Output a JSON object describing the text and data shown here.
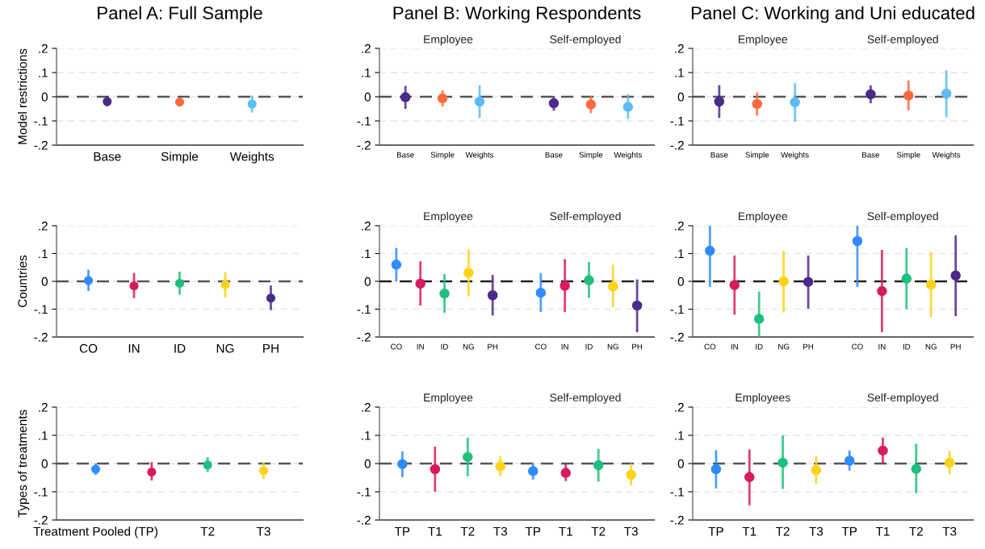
{
  "chart_data": [
    {
      "type": "scatter",
      "title": "Panel A: Full Sample",
      "ylabel": "Model restrictions",
      "categories": [
        "Base",
        "Simple",
        "Weights"
      ],
      "values": [
        -0.02,
        -0.022,
        -0.03
      ],
      "errors": [
        [
          -0.04,
          0.003
        ],
        [
          -0.04,
          -0.005
        ],
        [
          -0.065,
          0.005
        ]
      ],
      "colors": [
        "#4b2a8c",
        "#ff6a3d",
        "#5bbcf5"
      ],
      "ylim": [
        -0.2,
        0.2
      ],
      "yticks": [
        {
          "value": -0.2,
          "label": "-.2"
        },
        {
          "value": -0.1,
          "label": "-.1"
        },
        0,
        {
          "value": 0.1,
          "label": ".1"
        },
        {
          "value": 0.2,
          "label": ".2"
        }
      ],
      "grid": "y",
      "marker": "circle",
      "ref_lines": [
        {
          "axis": "y",
          "value": 0,
          "label": null,
          "color": "#555555",
          "line_style": "dashed"
        }
      ]
    },
    {
      "type": "scatter",
      "title": "Panel B: Working Respondents",
      "annotations": [
        "Employee",
        "Self-employed"
      ],
      "categories": [
        "Base",
        "Simple",
        "Weights",
        null,
        "Base",
        "Simple",
        "Weights"
      ],
      "values": [
        -0.002,
        -0.007,
        -0.02,
        null,
        -0.027,
        -0.032,
        -0.042
      ],
      "errors": [
        [
          -0.05,
          0.045
        ],
        [
          -0.04,
          0.027
        ],
        [
          -0.088,
          0.047
        ],
        null,
        [
          -0.058,
          0.003
        ],
        [
          -0.068,
          0.003
        ],
        [
          -0.092,
          0.01
        ]
      ],
      "colors": [
        "#4b2a8c",
        "#ff6a3d",
        "#5bbcf5",
        null,
        "#4b2a8c",
        "#ff6a3d",
        "#5bbcf5"
      ],
      "ylim": [
        -0.2,
        0.2
      ],
      "yticks": [
        {
          "value": -0.2,
          "label": "-.2"
        },
        {
          "value": -0.1,
          "label": "-.1"
        },
        0,
        {
          "value": 0.1,
          "label": ".1"
        },
        {
          "value": 0.2,
          "label": ".2"
        }
      ],
      "grid": "y",
      "marker": "circle",
      "ref_lines": [
        {
          "axis": "y",
          "value": 0,
          "label": null,
          "color": "#555555",
          "line_style": "dashed"
        }
      ]
    },
    {
      "type": "scatter",
      "title": "Panel C: Working and Uni educated",
      "annotations": [
        "Employee",
        "Self-employed"
      ],
      "categories": [
        "Base",
        "Simple",
        "Weights",
        null,
        "Base",
        "Simple",
        "Weights"
      ],
      "values": [
        -0.02,
        -0.03,
        -0.023,
        null,
        0.01,
        0.005,
        0.013
      ],
      "errors": [
        [
          -0.088,
          0.048
        ],
        [
          -0.078,
          0.018
        ],
        [
          -0.103,
          0.057
        ],
        null,
        [
          -0.027,
          0.047
        ],
        [
          -0.057,
          0.067
        ],
        [
          -0.085,
          0.11
        ]
      ],
      "colors": [
        "#4b2a8c",
        "#ff6a3d",
        "#5bbcf5",
        null,
        "#4b2a8c",
        "#ff6a3d",
        "#5bbcf5"
      ],
      "ylim": [
        -0.2,
        0.2
      ],
      "yticks": [
        {
          "value": -0.2,
          "label": "-.2"
        },
        {
          "value": -0.1,
          "label": "-.1"
        },
        0,
        {
          "value": 0.1,
          "label": ".1"
        },
        {
          "value": 0.2,
          "label": ".2"
        }
      ],
      "grid": "y",
      "marker": "circle",
      "ref_lines": [
        {
          "axis": "y",
          "value": 0,
          "label": null,
          "color": "#555555",
          "line_style": "dashed"
        }
      ]
    },
    {
      "type": "scatter",
      "ylabel": "Countries",
      "categories": [
        "CO",
        "IN",
        "ID",
        "NG",
        "PH"
      ],
      "values": [
        0.003,
        -0.016,
        -0.007,
        -0.012,
        -0.06
      ],
      "errors": [
        [
          -0.035,
          0.042
        ],
        [
          -0.06,
          0.03
        ],
        [
          -0.048,
          0.035
        ],
        [
          -0.058,
          0.033
        ],
        [
          -0.103,
          -0.015
        ]
      ],
      "colors": [
        "#2f8cff",
        "#d81b60",
        "#1fbf7f",
        "#ffd21a",
        "#4b2a8c"
      ],
      "ylim": [
        -0.2,
        0.2
      ],
      "yticks": [
        {
          "value": -0.2,
          "label": "-.2"
        },
        {
          "value": -0.1,
          "label": "-.1"
        },
        0,
        {
          "value": 0.1,
          "label": ".1"
        },
        {
          "value": 0.2,
          "label": ".2"
        }
      ],
      "grid": "y",
      "marker": "circle",
      "ref_lines": [
        {
          "axis": "y",
          "value": 0,
          "label": null,
          "color": "#555555",
          "line_style": "dashed"
        }
      ]
    },
    {
      "type": "scatter",
      "annotations": [
        "Employee",
        "Self-employed"
      ],
      "categories": [
        "CO",
        "IN",
        "ID",
        "NG",
        "PH",
        null,
        "CO",
        "IN",
        "ID",
        "NG",
        "PH"
      ],
      "values": [
        0.06,
        -0.008,
        -0.044,
        0.031,
        -0.05,
        null,
        -0.041,
        -0.016,
        0.004,
        -0.018,
        -0.087
      ],
      "errors": [
        [
          0.0,
          0.12
        ],
        [
          -0.087,
          0.072
        ],
        [
          -0.113,
          0.026
        ],
        [
          -0.054,
          0.115
        ],
        [
          -0.123,
          0.023
        ],
        null,
        [
          -0.11,
          0.03
        ],
        [
          -0.11,
          0.08
        ],
        [
          -0.06,
          0.07
        ],
        [
          -0.093,
          0.06
        ],
        [
          -0.183,
          0.007
        ]
      ],
      "colors": [
        "#2f8cff",
        "#d81b60",
        "#1fbf7f",
        "#ffd21a",
        "#4b2a8c",
        null,
        "#2f8cff",
        "#d81b60",
        "#1fbf7f",
        "#ffd21a",
        "#4b2a8c"
      ],
      "ylim": [
        -0.2,
        0.2
      ],
      "yticks": [
        {
          "value": -0.2,
          "label": "-.2"
        },
        {
          "value": -0.1,
          "label": "-.1"
        },
        0,
        {
          "value": 0.1,
          "label": ".1"
        },
        {
          "value": 0.2,
          "label": ".2"
        }
      ],
      "grid": "y",
      "marker": "circle",
      "ref_lines": [
        {
          "axis": "y",
          "value": 0,
          "label": null,
          "color": "#222222",
          "line_style": "dashed"
        }
      ]
    },
    {
      "type": "scatter",
      "annotations": [
        "Employee",
        "Self-employed"
      ],
      "categories": [
        "CO",
        "IN",
        "ID",
        "NG",
        "PH",
        null,
        "CO",
        "IN",
        "ID",
        "NG",
        "PH"
      ],
      "values": [
        0.11,
        -0.013,
        -0.135,
        0.0,
        -0.002,
        null,
        0.145,
        -0.035,
        0.01,
        -0.012,
        0.021
      ],
      "errors": [
        [
          -0.02,
          0.2
        ],
        [
          -0.12,
          0.093
        ],
        [
          -0.2,
          -0.037
        ],
        [
          -0.112,
          0.11
        ],
        [
          -0.098,
          0.093
        ],
        null,
        [
          -0.02,
          0.2
        ],
        [
          -0.183,
          0.113
        ],
        [
          -0.1,
          0.12
        ],
        [
          -0.128,
          0.105
        ],
        [
          -0.125,
          0.165
        ]
      ],
      "colors": [
        "#2f8cff",
        "#d81b60",
        "#1fbf7f",
        "#ffd21a",
        "#4b2a8c",
        null,
        "#2f8cff",
        "#d81b60",
        "#1fbf7f",
        "#ffd21a",
        "#4b2a8c"
      ],
      "ylim": [
        -0.2,
        0.2
      ],
      "yticks": [
        {
          "value": -0.2,
          "label": "-.2"
        },
        {
          "value": -0.1,
          "label": "-.1"
        },
        0,
        {
          "value": 0.1,
          "label": ".1"
        },
        {
          "value": 0.2,
          "label": ".2"
        }
      ],
      "grid": "y",
      "marker": "circle",
      "ref_lines": [
        {
          "axis": "y",
          "value": 0,
          "label": null,
          "color": "#222222",
          "line_style": "dashed"
        }
      ]
    },
    {
      "type": "scatter",
      "ylabel": "Types of treatments",
      "categories": [
        "Treatment Pooled (TP)",
        null,
        "T2",
        "T3"
      ],
      "values": [
        -0.02,
        -0.03,
        -0.005,
        -0.025
      ],
      "errors": [
        [
          -0.04,
          0.0
        ],
        [
          -0.06,
          0.005
        ],
        [
          -0.03,
          0.022
        ],
        [
          -0.055,
          0.005
        ]
      ],
      "colors": [
        "#2f8cff",
        "#d81b60",
        "#1fbf7f",
        "#ffd21a"
      ],
      "ylim": [
        -0.2,
        0.2
      ],
      "yticks": [
        {
          "value": -0.2,
          "label": "-.2"
        },
        {
          "value": -0.1,
          "label": "-.1"
        },
        0,
        {
          "value": 0.1,
          "label": ".1"
        },
        {
          "value": 0.2,
          "label": ".2"
        }
      ],
      "grid": "y",
      "marker": "circle",
      "ref_lines": [
        {
          "axis": "y",
          "value": 0,
          "label": null,
          "color": "#555555",
          "line_style": "dashed"
        }
      ]
    },
    {
      "type": "scatter",
      "annotations": [
        "Employee",
        "Self-employed"
      ],
      "categories": [
        "TP",
        "T1",
        "T2",
        "T3",
        "TP",
        "T1",
        "T2",
        "T3"
      ],
      "values": [
        -0.002,
        -0.02,
        0.023,
        -0.01,
        -0.027,
        -0.033,
        -0.006,
        -0.04
      ],
      "errors": [
        [
          -0.048,
          0.043
        ],
        [
          -0.1,
          0.06
        ],
        [
          -0.045,
          0.092
        ],
        [
          -0.045,
          0.026
        ],
        [
          -0.057,
          0.002
        ],
        [
          -0.062,
          -0.003
        ],
        [
          -0.064,
          0.052
        ],
        [
          -0.078,
          0.0
        ]
      ],
      "colors": [
        "#2f8cff",
        "#d81b60",
        "#1fbf7f",
        "#ffd21a",
        "#2f8cff",
        "#d81b60",
        "#1fbf7f",
        "#ffd21a"
      ],
      "ylim": [
        -0.2,
        0.2
      ],
      "yticks": [
        {
          "value": -0.2,
          "label": "-.2"
        },
        {
          "value": -0.1,
          "label": "-.1"
        },
        0,
        {
          "value": 0.1,
          "label": ".1"
        },
        {
          "value": 0.2,
          "label": ".2"
        }
      ],
      "grid": "y",
      "marker": "circle",
      "ref_lines": [
        {
          "axis": "y",
          "value": 0,
          "label": null,
          "color": "#555555",
          "line_style": "dashed"
        }
      ]
    },
    {
      "type": "scatter",
      "annotations": [
        "Employees",
        "Self-employed"
      ],
      "categories": [
        "TP",
        "T1",
        "T2",
        "T3",
        "TP",
        "T1",
        "T2",
        "T3"
      ],
      "values": [
        -0.02,
        -0.048,
        0.003,
        -0.023,
        0.01,
        0.046,
        -0.019,
        0.003
      ],
      "errors": [
        [
          -0.088,
          0.047
        ],
        [
          -0.148,
          0.05
        ],
        [
          -0.09,
          0.1
        ],
        [
          -0.072,
          0.027
        ],
        [
          -0.025,
          0.047
        ],
        [
          0.0,
          0.092
        ],
        [
          -0.105,
          0.07
        ],
        [
          -0.037,
          0.045
        ]
      ],
      "colors": [
        "#2f8cff",
        "#d81b60",
        "#1fbf7f",
        "#ffd21a",
        "#2f8cff",
        "#d81b60",
        "#1fbf7f",
        "#ffd21a"
      ],
      "ylim": [
        -0.2,
        0.2
      ],
      "yticks": [
        {
          "value": -0.2,
          "label": "-.2"
        },
        {
          "value": -0.1,
          "label": "-.1"
        },
        0,
        {
          "value": 0.1,
          "label": ".1"
        },
        {
          "value": 0.2,
          "label": ".2"
        }
      ],
      "grid": "y",
      "marker": "circle",
      "ref_lines": [
        {
          "axis": "y",
          "value": 0,
          "label": null,
          "color": "#555555",
          "line_style": "dashed"
        }
      ]
    }
  ]
}
